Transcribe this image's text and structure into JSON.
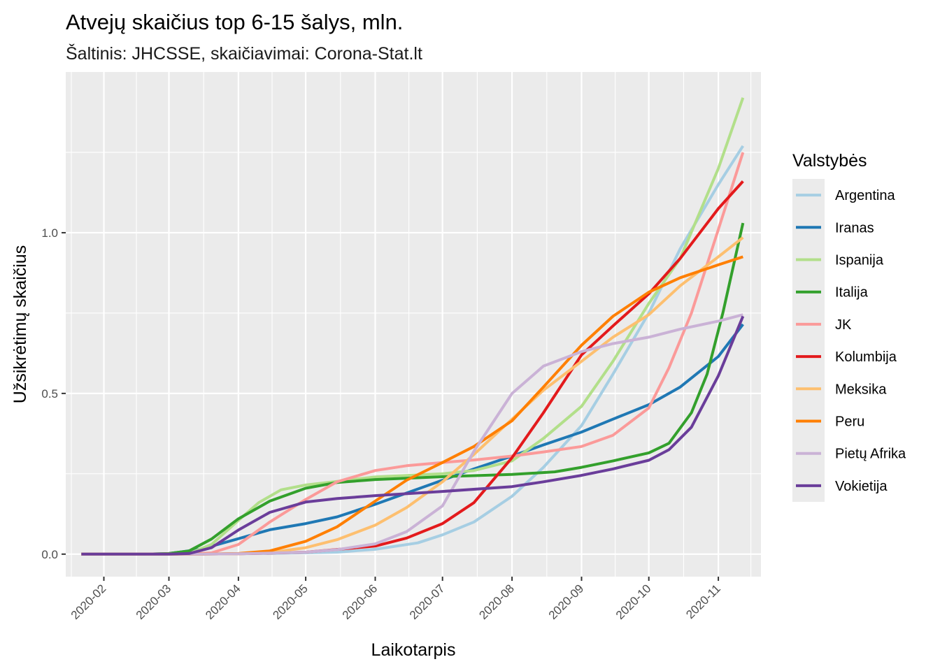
{
  "chart_data": {
    "type": "line",
    "title": "Atvejų skaičius top 6-15 šalys, mln.",
    "subtitle": "Šaltinis: JHCSSE, skaičiavimai: Corona-Stat.lt",
    "xlabel": "Laikotarpis",
    "ylabel": "Užsikrėtimų skaičius",
    "x_type": "date",
    "xlim": [
      "2020-01-15",
      "2020-11-20"
    ],
    "ylim": [
      -0.07,
      1.5
    ],
    "x_ticks": [
      "2020-02",
      "2020-03",
      "2020-04",
      "2020-05",
      "2020-06",
      "2020-07",
      "2020-08",
      "2020-09",
      "2020-10",
      "2020-11"
    ],
    "y_ticks": [
      0.0,
      0.5,
      1.0
    ],
    "y_tick_labels": [
      "0.0",
      "0.5",
      "1.0"
    ],
    "grid": true,
    "legend": {
      "title": "Valstybės",
      "position": "right"
    },
    "series": [
      {
        "name": "Argentina",
        "color": "#a6cee3",
        "points": [
          [
            "2020-01-22",
            0
          ],
          [
            "2020-03-15",
            0
          ],
          [
            "2020-04-15",
            0.002
          ],
          [
            "2020-05-15",
            0.006
          ],
          [
            "2020-06-01",
            0.015
          ],
          [
            "2020-06-20",
            0.035
          ],
          [
            "2020-07-01",
            0.06
          ],
          [
            "2020-07-15",
            0.1
          ],
          [
            "2020-08-01",
            0.18
          ],
          [
            "2020-08-15",
            0.27
          ],
          [
            "2020-09-01",
            0.4
          ],
          [
            "2020-09-15",
            0.56
          ],
          [
            "2020-10-01",
            0.75
          ],
          [
            "2020-10-15",
            0.95
          ],
          [
            "2020-11-01",
            1.15
          ],
          [
            "2020-11-12",
            1.27
          ]
        ]
      },
      {
        "name": "Iranas",
        "color": "#1f78b4",
        "points": [
          [
            "2020-01-22",
            0
          ],
          [
            "2020-02-20",
            0
          ],
          [
            "2020-03-01",
            0.002
          ],
          [
            "2020-03-15",
            0.015
          ],
          [
            "2020-04-01",
            0.048
          ],
          [
            "2020-04-15",
            0.076
          ],
          [
            "2020-05-01",
            0.095
          ],
          [
            "2020-05-15",
            0.116
          ],
          [
            "2020-06-01",
            0.155
          ],
          [
            "2020-06-15",
            0.19
          ],
          [
            "2020-07-01",
            0.23
          ],
          [
            "2020-07-15",
            0.265
          ],
          [
            "2020-08-01",
            0.305
          ],
          [
            "2020-08-15",
            0.34
          ],
          [
            "2020-09-01",
            0.38
          ],
          [
            "2020-09-15",
            0.42
          ],
          [
            "2020-10-01",
            0.465
          ],
          [
            "2020-10-15",
            0.52
          ],
          [
            "2020-11-01",
            0.615
          ],
          [
            "2020-11-12",
            0.715
          ]
        ]
      },
      {
        "name": "Ispanija",
        "color": "#b2df8a",
        "points": [
          [
            "2020-01-22",
            0
          ],
          [
            "2020-03-01",
            0
          ],
          [
            "2020-03-10",
            0.002
          ],
          [
            "2020-03-20",
            0.03
          ],
          [
            "2020-04-01",
            0.105
          ],
          [
            "2020-04-10",
            0.16
          ],
          [
            "2020-04-20",
            0.2
          ],
          [
            "2020-05-01",
            0.215
          ],
          [
            "2020-06-01",
            0.24
          ],
          [
            "2020-07-01",
            0.25
          ],
          [
            "2020-07-15",
            0.26
          ],
          [
            "2020-08-01",
            0.29
          ],
          [
            "2020-08-15",
            0.36
          ],
          [
            "2020-09-01",
            0.46
          ],
          [
            "2020-09-15",
            0.6
          ],
          [
            "2020-10-01",
            0.78
          ],
          [
            "2020-10-15",
            0.92
          ],
          [
            "2020-11-01",
            1.2
          ],
          [
            "2020-11-08",
            1.34
          ],
          [
            "2020-11-12",
            1.42
          ]
        ]
      },
      {
        "name": "Italija",
        "color": "#33a02c",
        "points": [
          [
            "2020-01-22",
            0
          ],
          [
            "2020-02-20",
            0
          ],
          [
            "2020-03-01",
            0.002
          ],
          [
            "2020-03-10",
            0.01
          ],
          [
            "2020-03-20",
            0.047
          ],
          [
            "2020-04-01",
            0.11
          ],
          [
            "2020-04-15",
            0.165
          ],
          [
            "2020-05-01",
            0.205
          ],
          [
            "2020-05-15",
            0.223
          ],
          [
            "2020-06-01",
            0.232
          ],
          [
            "2020-07-01",
            0.241
          ],
          [
            "2020-08-01",
            0.248
          ],
          [
            "2020-08-20",
            0.256
          ],
          [
            "2020-09-01",
            0.27
          ],
          [
            "2020-09-15",
            0.29
          ],
          [
            "2020-10-01",
            0.315
          ],
          [
            "2020-10-10",
            0.345
          ],
          [
            "2020-10-20",
            0.44
          ],
          [
            "2020-10-27",
            0.56
          ],
          [
            "2020-11-03",
            0.75
          ],
          [
            "2020-11-12",
            1.03
          ]
        ]
      },
      {
        "name": "JK",
        "color": "#fb9a99",
        "points": [
          [
            "2020-01-22",
            0
          ],
          [
            "2020-03-10",
            0
          ],
          [
            "2020-03-20",
            0.004
          ],
          [
            "2020-04-01",
            0.03
          ],
          [
            "2020-04-15",
            0.1
          ],
          [
            "2020-05-01",
            0.17
          ],
          [
            "2020-05-15",
            0.225
          ],
          [
            "2020-06-01",
            0.26
          ],
          [
            "2020-06-15",
            0.275
          ],
          [
            "2020-07-01",
            0.285
          ],
          [
            "2020-07-15",
            0.293
          ],
          [
            "2020-08-01",
            0.305
          ],
          [
            "2020-08-15",
            0.318
          ],
          [
            "2020-09-01",
            0.335
          ],
          [
            "2020-09-15",
            0.37
          ],
          [
            "2020-10-01",
            0.455
          ],
          [
            "2020-10-10",
            0.58
          ],
          [
            "2020-10-20",
            0.75
          ],
          [
            "2020-11-01",
            1.01
          ],
          [
            "2020-11-12",
            1.25
          ]
        ]
      },
      {
        "name": "Kolumbija",
        "color": "#e31a1c",
        "points": [
          [
            "2020-01-22",
            0
          ],
          [
            "2020-03-15",
            0
          ],
          [
            "2020-04-01",
            0.001
          ],
          [
            "2020-05-01",
            0.006
          ],
          [
            "2020-06-01",
            0.025
          ],
          [
            "2020-06-15",
            0.05
          ],
          [
            "2020-07-01",
            0.095
          ],
          [
            "2020-07-15",
            0.16
          ],
          [
            "2020-08-01",
            0.3
          ],
          [
            "2020-08-15",
            0.44
          ],
          [
            "2020-09-01",
            0.62
          ],
          [
            "2020-09-15",
            0.71
          ],
          [
            "2020-10-01",
            0.81
          ],
          [
            "2020-10-15",
            0.92
          ],
          [
            "2020-11-01",
            1.075
          ],
          [
            "2020-11-12",
            1.16
          ]
        ]
      },
      {
        "name": "Meksika",
        "color": "#fdbf6f",
        "points": [
          [
            "2020-01-22",
            0
          ],
          [
            "2020-03-15",
            0
          ],
          [
            "2020-04-01",
            0.001
          ],
          [
            "2020-04-15",
            0.005
          ],
          [
            "2020-05-01",
            0.02
          ],
          [
            "2020-05-15",
            0.045
          ],
          [
            "2020-06-01",
            0.09
          ],
          [
            "2020-06-15",
            0.145
          ],
          [
            "2020-07-01",
            0.225
          ],
          [
            "2020-07-15",
            0.31
          ],
          [
            "2020-08-01",
            0.42
          ],
          [
            "2020-08-15",
            0.51
          ],
          [
            "2020-09-01",
            0.6
          ],
          [
            "2020-09-15",
            0.675
          ],
          [
            "2020-10-01",
            0.745
          ],
          [
            "2020-10-15",
            0.835
          ],
          [
            "2020-11-01",
            0.925
          ],
          [
            "2020-11-12",
            0.985
          ]
        ]
      },
      {
        "name": "Peru",
        "color": "#ff7f00",
        "points": [
          [
            "2020-01-22",
            0
          ],
          [
            "2020-03-15",
            0
          ],
          [
            "2020-04-01",
            0.002
          ],
          [
            "2020-04-15",
            0.01
          ],
          [
            "2020-05-01",
            0.04
          ],
          [
            "2020-05-15",
            0.085
          ],
          [
            "2020-06-01",
            0.165
          ],
          [
            "2020-06-15",
            0.23
          ],
          [
            "2020-07-01",
            0.285
          ],
          [
            "2020-07-15",
            0.335
          ],
          [
            "2020-08-01",
            0.415
          ],
          [
            "2020-08-15",
            0.52
          ],
          [
            "2020-09-01",
            0.65
          ],
          [
            "2020-09-15",
            0.74
          ],
          [
            "2020-10-01",
            0.815
          ],
          [
            "2020-10-15",
            0.86
          ],
          [
            "2020-11-01",
            0.9
          ],
          [
            "2020-11-12",
            0.925
          ]
        ]
      },
      {
        "name": "Pietų Afrika",
        "color": "#cab2d6",
        "points": [
          [
            "2020-01-22",
            0
          ],
          [
            "2020-03-15",
            0
          ],
          [
            "2020-04-01",
            0.001
          ],
          [
            "2020-05-01",
            0.006
          ],
          [
            "2020-05-15",
            0.014
          ],
          [
            "2020-06-01",
            0.032
          ],
          [
            "2020-06-15",
            0.07
          ],
          [
            "2020-07-01",
            0.15
          ],
          [
            "2020-07-15",
            0.32
          ],
          [
            "2020-08-01",
            0.5
          ],
          [
            "2020-08-15",
            0.585
          ],
          [
            "2020-09-01",
            0.63
          ],
          [
            "2020-09-15",
            0.655
          ],
          [
            "2020-10-01",
            0.675
          ],
          [
            "2020-10-15",
            0.7
          ],
          [
            "2020-11-01",
            0.725
          ],
          [
            "2020-11-12",
            0.745
          ]
        ]
      },
      {
        "name": "Vokietija",
        "color": "#6a3d9a",
        "points": [
          [
            "2020-01-22",
            0
          ],
          [
            "2020-03-01",
            0
          ],
          [
            "2020-03-10",
            0.002
          ],
          [
            "2020-03-20",
            0.02
          ],
          [
            "2020-04-01",
            0.075
          ],
          [
            "2020-04-15",
            0.13
          ],
          [
            "2020-05-01",
            0.162
          ],
          [
            "2020-05-15",
            0.173
          ],
          [
            "2020-06-01",
            0.182
          ],
          [
            "2020-07-01",
            0.195
          ],
          [
            "2020-08-01",
            0.21
          ],
          [
            "2020-08-15",
            0.225
          ],
          [
            "2020-09-01",
            0.245
          ],
          [
            "2020-09-15",
            0.265
          ],
          [
            "2020-10-01",
            0.292
          ],
          [
            "2020-10-10",
            0.325
          ],
          [
            "2020-10-20",
            0.395
          ],
          [
            "2020-11-01",
            0.555
          ],
          [
            "2020-11-12",
            0.74
          ]
        ]
      }
    ]
  }
}
